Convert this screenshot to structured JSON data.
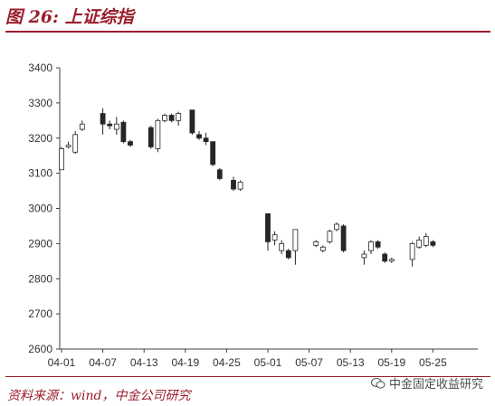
{
  "figure": {
    "title": "图 26: 上证综指",
    "source": "资料来源：wind，中金公司研究",
    "watermark": "中金固定收益研究"
  },
  "colors": {
    "accent": "#9a1e2b",
    "down_candle": "#262626",
    "up_candle": "#ffffff",
    "axis": "#404040"
  },
  "chart_data": {
    "type": "candlestick",
    "title": "",
    "xlabel": "",
    "ylabel": "",
    "ylim": [
      2600,
      3400
    ],
    "yticks": [
      2600,
      2700,
      2800,
      2900,
      3000,
      3100,
      3200,
      3300,
      3400
    ],
    "xticks": [
      "04-01",
      "04-07",
      "04-13",
      "04-19",
      "04-25",
      "05-01",
      "05-07",
      "05-13",
      "05-19",
      "05-25"
    ],
    "grid": false,
    "candles": [
      {
        "slot": 0,
        "open": 3110,
        "close": 3170,
        "high": 3175,
        "low": 3110
      },
      {
        "slot": 1,
        "open": 3175,
        "close": 3180,
        "high": 3190,
        "low": 3170
      },
      {
        "slot": 2,
        "open": 3160,
        "close": 3210,
        "high": 3220,
        "low": 3155
      },
      {
        "slot": 3,
        "open": 3225,
        "close": 3240,
        "high": 3250,
        "low": 3220
      },
      {
        "slot": 6,
        "open": 3270,
        "close": 3240,
        "high": 3285,
        "low": 3210
      },
      {
        "slot": 7,
        "open": 3240,
        "close": 3235,
        "high": 3250,
        "low": 3225
      },
      {
        "slot": 8,
        "open": 3225,
        "close": 3240,
        "high": 3260,
        "low": 3210
      },
      {
        "slot": 9,
        "open": 3245,
        "close": 3190,
        "high": 3250,
        "low": 3185
      },
      {
        "slot": 10,
        "open": 3190,
        "close": 3180,
        "high": 3195,
        "low": 3175
      },
      {
        "slot": 13,
        "open": 3230,
        "close": 3175,
        "high": 3235,
        "low": 3170
      },
      {
        "slot": 14,
        "open": 3170,
        "close": 3250,
        "high": 3255,
        "low": 3160
      },
      {
        "slot": 15,
        "open": 3250,
        "close": 3265,
        "high": 3270,
        "low": 3245
      },
      {
        "slot": 16,
        "open": 3265,
        "close": 3250,
        "high": 3270,
        "low": 3245
      },
      {
        "slot": 17,
        "open": 3250,
        "close": 3270,
        "high": 3275,
        "low": 3235
      },
      {
        "slot": 19,
        "open": 3280,
        "close": 3215,
        "high": 3280,
        "low": 3210
      },
      {
        "slot": 20,
        "open": 3210,
        "close": 3200,
        "high": 3220,
        "low": 3195
      },
      {
        "slot": 21,
        "open": 3200,
        "close": 3190,
        "high": 3215,
        "low": 3180
      },
      {
        "slot": 22,
        "open": 3190,
        "close": 3125,
        "high": 3190,
        "low": 3120
      },
      {
        "slot": 23,
        "open": 3110,
        "close": 3085,
        "high": 3115,
        "low": 3080
      },
      {
        "slot": 25,
        "open": 3080,
        "close": 3055,
        "high": 3090,
        "low": 3050
      },
      {
        "slot": 26,
        "open": 3055,
        "close": 3075,
        "high": 3080,
        "low": 3050
      },
      {
        "slot": 30,
        "open": 2985,
        "close": 2905,
        "high": 2985,
        "low": 2880
      },
      {
        "slot": 31,
        "open": 2910,
        "close": 2925,
        "high": 2935,
        "low": 2895
      },
      {
        "slot": 32,
        "open": 2880,
        "close": 2900,
        "high": 2910,
        "low": 2870
      },
      {
        "slot": 33,
        "open": 2880,
        "close": 2860,
        "high": 2885,
        "low": 2855
      },
      {
        "slot": 34,
        "open": 2880,
        "close": 2940,
        "high": 2940,
        "low": 2840
      },
      {
        "slot": 37,
        "open": 2895,
        "close": 2905,
        "high": 2910,
        "low": 2890
      },
      {
        "slot": 38,
        "open": 2880,
        "close": 2890,
        "high": 2895,
        "low": 2875
      },
      {
        "slot": 39,
        "open": 2905,
        "close": 2935,
        "high": 2940,
        "low": 2900
      },
      {
        "slot": 40,
        "open": 2940,
        "close": 2955,
        "high": 2960,
        "low": 2935
      },
      {
        "slot": 41,
        "open": 2950,
        "close": 2880,
        "high": 2955,
        "low": 2875
      },
      {
        "slot": 44,
        "open": 2860,
        "close": 2870,
        "high": 2880,
        "low": 2840
      },
      {
        "slot": 45,
        "open": 2880,
        "close": 2905,
        "high": 2910,
        "low": 2870
      },
      {
        "slot": 46,
        "open": 2905,
        "close": 2890,
        "high": 2910,
        "low": 2885
      },
      {
        "slot": 47,
        "open": 2870,
        "close": 2850,
        "high": 2875,
        "low": 2845
      },
      {
        "slot": 48,
        "open": 2850,
        "close": 2855,
        "high": 2860,
        "low": 2845
      },
      {
        "slot": 51,
        "open": 2855,
        "close": 2900,
        "high": 2905,
        "low": 2835
      },
      {
        "slot": 52,
        "open": 2890,
        "close": 2910,
        "high": 2920,
        "low": 2885
      },
      {
        "slot": 53,
        "open": 2895,
        "close": 2920,
        "high": 2930,
        "low": 2890
      },
      {
        "slot": 54,
        "open": 2905,
        "close": 2895,
        "high": 2910,
        "low": 2890
      }
    ]
  }
}
